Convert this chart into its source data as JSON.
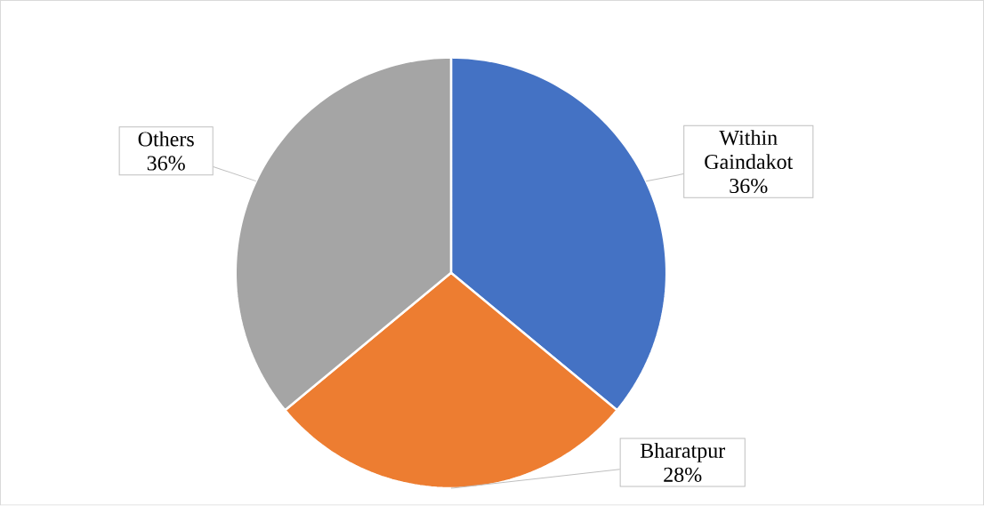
{
  "chart_data": {
    "type": "pie",
    "categories": [
      "Within Gaindakot",
      "Bharatpur",
      "Others"
    ],
    "values": [
      36,
      28,
      36
    ],
    "colors": [
      "#4472c4",
      "#ed7d31",
      "#a5a5a5"
    ],
    "value_labels": [
      "36%",
      "28%",
      "36%"
    ]
  }
}
